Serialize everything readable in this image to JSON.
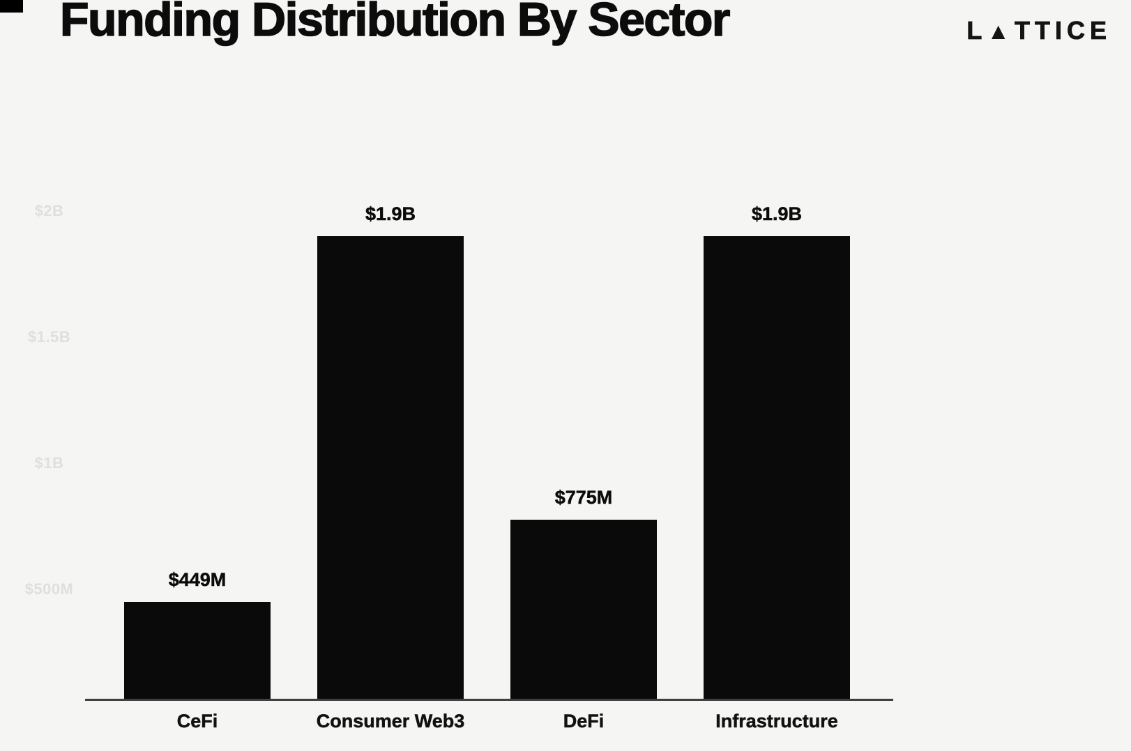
{
  "header": {
    "title": "Funding Distribution By Sector",
    "brand": {
      "prefix": "L",
      "triangle": "▲",
      "suffix": "TTICE",
      "name": "LATTICE"
    }
  },
  "colors": {
    "background": "#f5f5f3",
    "bar": "#0a0a0a",
    "text": "#0c0c0c",
    "axis_line": "#3f3f3f",
    "ytick_label": "#dfdfdd"
  },
  "chart_data": {
    "type": "bar",
    "orientation": "vertical",
    "title": "Funding Distribution By Sector",
    "categories": [
      "CeFi",
      "Consumer Web3",
      "DeFi",
      "Infrastructure"
    ],
    "values_usd_millions": [
      449,
      1900,
      775,
      1900
    ],
    "value_labels": [
      "$449M",
      "$1.9B",
      "$775M",
      "$1.9B"
    ],
    "ytick_values_usd_millions": [
      2000,
      1500,
      1000,
      500
    ],
    "ytick_labels": [
      "$2B",
      "$1.5B",
      "$1B",
      "$500M"
    ],
    "xlabel": "",
    "ylabel": "",
    "ylim_usd_millions": [
      0,
      2200
    ],
    "grid": false,
    "legend": false,
    "bar_color": "#0a0a0a"
  }
}
